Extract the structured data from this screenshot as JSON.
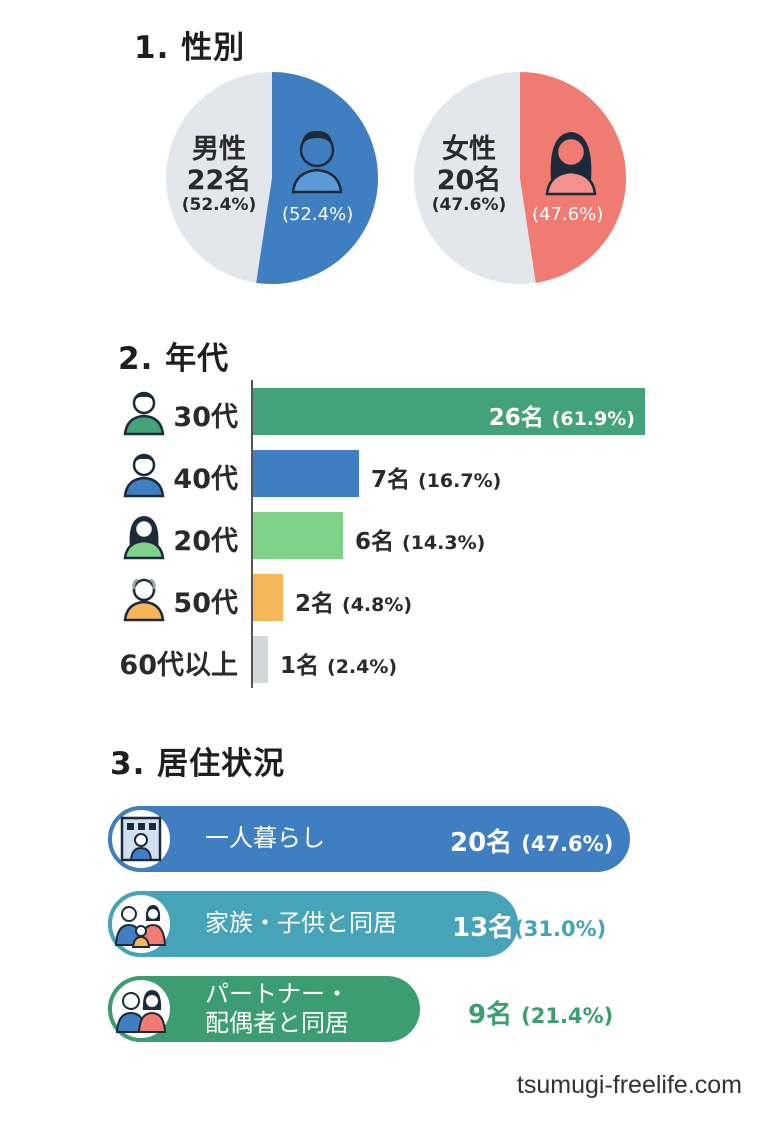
{
  "sections": {
    "gender_title": "1. 性別",
    "age_title": "2. 年代",
    "residence_title": "3. 居住状況"
  },
  "gender": {
    "male": {
      "label": "男性",
      "count": "22名",
      "pct": "(52.4%)",
      "pct_inside": "(52.4%)"
    },
    "female": {
      "label": "女性",
      "count": "20名",
      "pct": "(47.6%)",
      "pct_inside": "(47.6%)"
    }
  },
  "age_rows": [
    {
      "label": "30代",
      "value": "26名",
      "pct": "(61.9%)",
      "icon": "person-icon"
    },
    {
      "label": "40代",
      "value": "7名",
      "pct": "(16.7%)",
      "icon": "person-icon"
    },
    {
      "label": "20代",
      "value": "6名",
      "pct": "(14.3%)",
      "icon": "woman-icon"
    },
    {
      "label": "50代",
      "value": "2名",
      "pct": "(4.8%)",
      "icon": "elderly-person-icon"
    },
    {
      "label": "60代以上",
      "value": "1名",
      "pct": "(2.4%)",
      "icon": ""
    }
  ],
  "residence_rows": [
    {
      "label": "一人暮らし",
      "value": "20名",
      "pct": "(47.6%)",
      "icon": "apartment-person-icon"
    },
    {
      "label": "家族・子供と同居",
      "value": "13名",
      "pct": "(31.0%)",
      "icon": "family-icon"
    },
    {
      "label_line1": "パートナー・",
      "label_line2": "配偶者と同居",
      "value": "9名",
      "pct": "(21.4%)",
      "icon": "couple-icon"
    }
  ],
  "footer": {
    "site": "tsumugi-freelife.com"
  },
  "colors": {
    "male": "#3f7fc1",
    "female": "#ef7b72",
    "pie_bg": "#e3e6ea",
    "green_dark": "#43a277",
    "green_light": "#7ed28a",
    "blue": "#3f7fc1",
    "orange": "#f6b75a",
    "gray": "#d3d6db",
    "teal": "#46a3b8",
    "green_pill": "#3c9d70"
  },
  "chart_data": [
    {
      "type": "pie",
      "title": "1. 性別",
      "categories": [
        "男性",
        "女性"
      ],
      "values": [
        22,
        20
      ],
      "percent": [
        52.4,
        47.6
      ]
    },
    {
      "type": "bar",
      "title": "2. 年代",
      "categories": [
        "30代",
        "40代",
        "20代",
        "50代",
        "60代以上"
      ],
      "values": [
        26,
        7,
        6,
        2,
        1
      ],
      "percent": [
        61.9,
        16.7,
        14.3,
        4.8,
        2.4
      ],
      "xlim": [
        0,
        26
      ]
    },
    {
      "type": "bar",
      "title": "3. 居住状況",
      "categories": [
        "一人暮らし",
        "家族・子供と同居",
        "パートナー・配偶者と同居"
      ],
      "values": [
        20,
        13,
        9
      ],
      "percent": [
        47.6,
        31.0,
        21.4
      ]
    }
  ]
}
